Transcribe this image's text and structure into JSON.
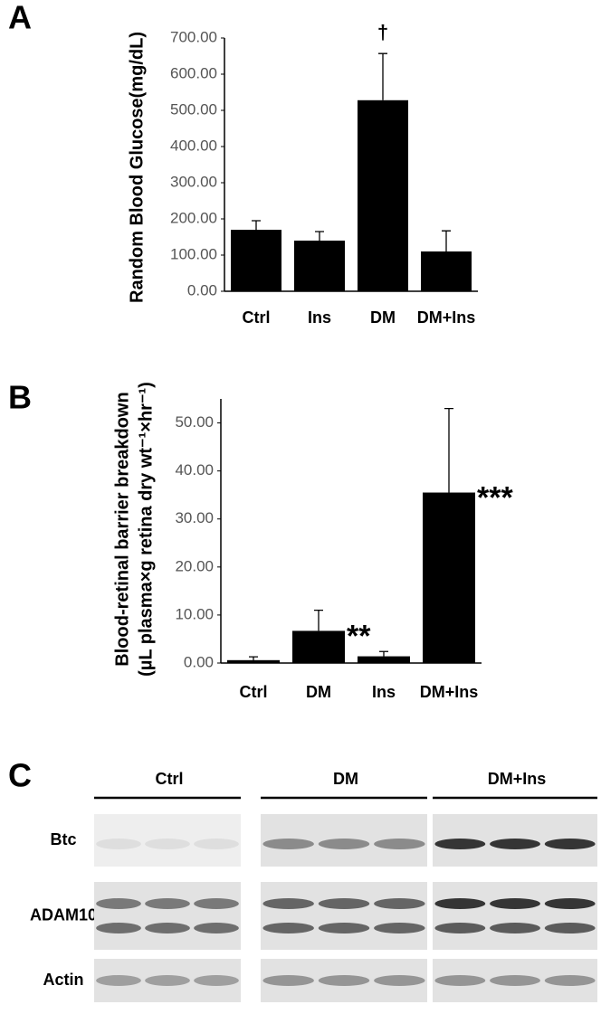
{
  "chart_data": [
    {
      "type": "bar",
      "panel": "A",
      "ylabel": "Random Blood Glucose(mg/dL)",
      "categories": [
        "Ctrl",
        "Ins",
        "DM",
        "DM+Ins"
      ],
      "values": [
        170,
        140,
        528,
        110
      ],
      "errors": [
        25,
        25,
        129,
        57
      ],
      "annotations": [
        null,
        null,
        "†",
        null
      ],
      "color": "#000000",
      "ylim": [
        0,
        700
      ],
      "yticks": [
        {
          "value": 0,
          "label": "0.00"
        },
        {
          "value": 100,
          "label": "100.00"
        },
        {
          "value": 200,
          "label": "200.00"
        },
        {
          "value": 300,
          "label": "300.00"
        },
        {
          "value": 400,
          "label": "400.00"
        },
        {
          "value": 500,
          "label": "500.00"
        },
        {
          "value": 600,
          "label": "600.00"
        },
        {
          "value": 700,
          "label": "700.00"
        }
      ],
      "grid": false
    },
    {
      "type": "bar",
      "panel": "B",
      "ylabel": [
        "Blood-retinal barrier breakdown",
        "(µL plasma×g retina dry wt⁻¹×hr⁻¹)"
      ],
      "categories": [
        "Ctrl",
        "DM",
        "Ins",
        "DM+Ins"
      ],
      "values": [
        0.6,
        6.7,
        1.4,
        35.5
      ],
      "errors": [
        0.7,
        4.3,
        1.0,
        17.5
      ],
      "annotations": [
        null,
        "**",
        null,
        "***"
      ],
      "color": "#000000",
      "ylim": [
        0,
        55
      ],
      "yticks": [
        {
          "value": 0,
          "label": "0.00"
        },
        {
          "value": 10,
          "label": "10.00"
        },
        {
          "value": 20,
          "label": "20.00"
        },
        {
          "value": 30,
          "label": "30.00"
        },
        {
          "value": 40,
          "label": "40.00"
        },
        {
          "value": 50,
          "label": "50.00"
        }
      ],
      "grid": false
    }
  ],
  "blot": {
    "panel": "C",
    "groups": [
      "Ctrl",
      "DM",
      "DM+Ins"
    ],
    "rows": [
      "Btc",
      "ADAM10",
      "Actin"
    ]
  }
}
